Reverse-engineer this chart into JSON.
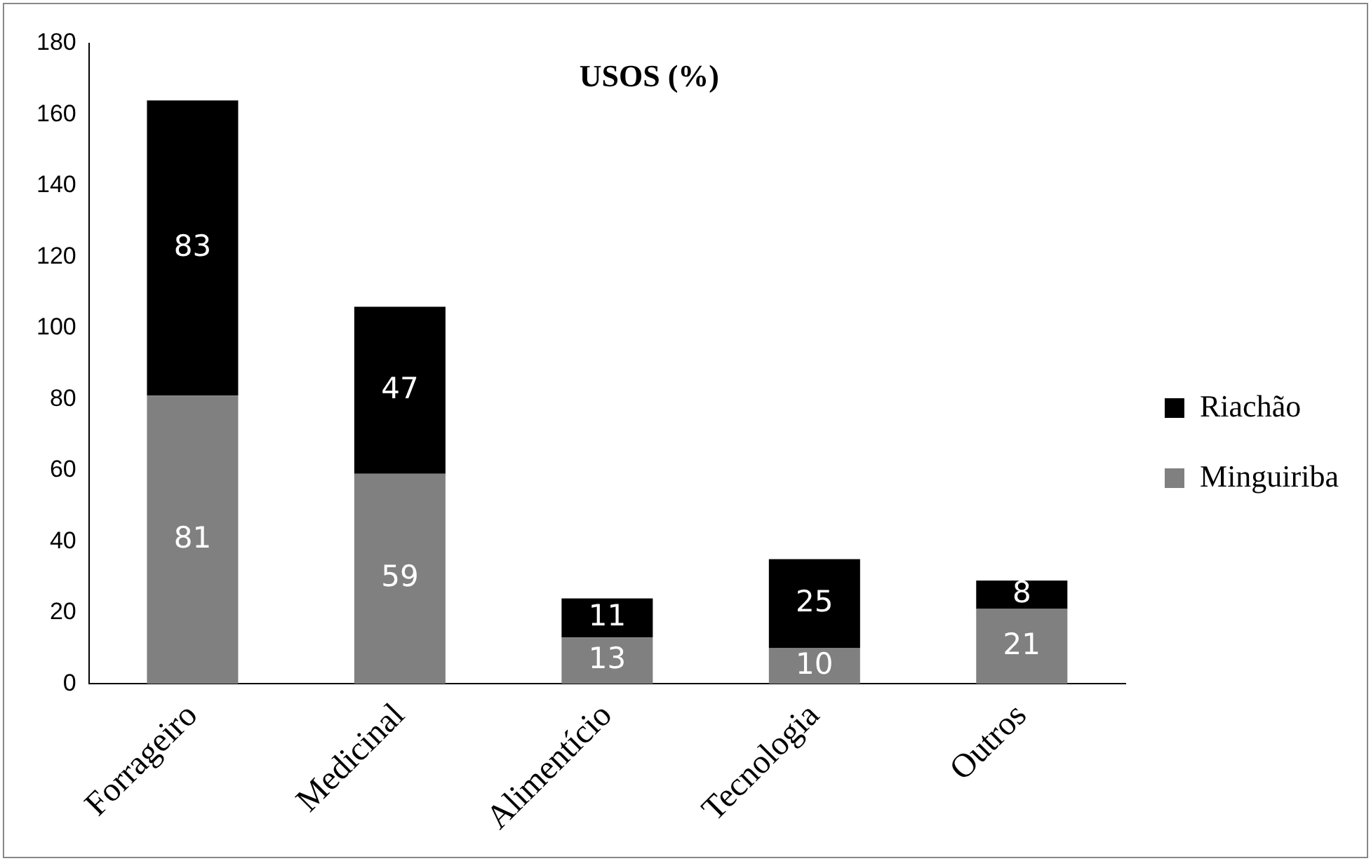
{
  "chart_data": {
    "type": "bar",
    "title": "USOS (%)",
    "stacked": true,
    "categories": [
      "Forrageiro",
      "Medicinal",
      "Alimentício",
      "Tecnologia",
      "Outros"
    ],
    "series": [
      {
        "name": "Minguiriba",
        "color": "#808080",
        "values": [
          81,
          59,
          13,
          10,
          21
        ]
      },
      {
        "name": "Riachão",
        "color": "#000000",
        "values": [
          83,
          47,
          11,
          25,
          8
        ]
      }
    ],
    "ylim": [
      0,
      180
    ],
    "yticks": [
      0,
      20,
      40,
      60,
      80,
      100,
      120,
      140,
      160,
      180
    ],
    "grid": false,
    "legend": "right",
    "data_labels": true
  }
}
